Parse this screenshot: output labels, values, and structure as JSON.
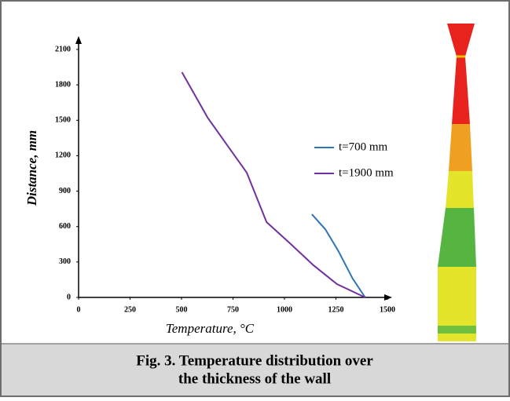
{
  "chart_data": {
    "type": "line",
    "xlabel": "Temperature, °C",
    "ylabel": "Distance, mm",
    "xlim": [
      0,
      1500
    ],
    "xticks": [
      0,
      250,
      500,
      750,
      1000,
      1250,
      1500
    ],
    "ylim": [
      0,
      2100
    ],
    "yticks": [
      0,
      300,
      600,
      900,
      1200,
      1500,
      1800,
      2100
    ],
    "series": [
      {
        "name": "t=700 mm",
        "color": "#2e75b6",
        "x": [
          1133,
          1198,
          1262,
          1331,
          1392
        ],
        "values": [
          704,
          578,
          392,
          160,
          0
        ]
      },
      {
        "name": "t=1900 mm",
        "color": "#7030a0",
        "x": [
          502,
          627,
          722,
          817,
          913,
          1027,
          1141,
          1255,
          1392
        ],
        "values": [
          1907,
          1522,
          1289,
          1056,
          638,
          458,
          272,
          113,
          0
        ]
      }
    ]
  },
  "caption": [
    "Fig. 3. Temperature distribution over",
    "the thickness of the wall"
  ]
}
